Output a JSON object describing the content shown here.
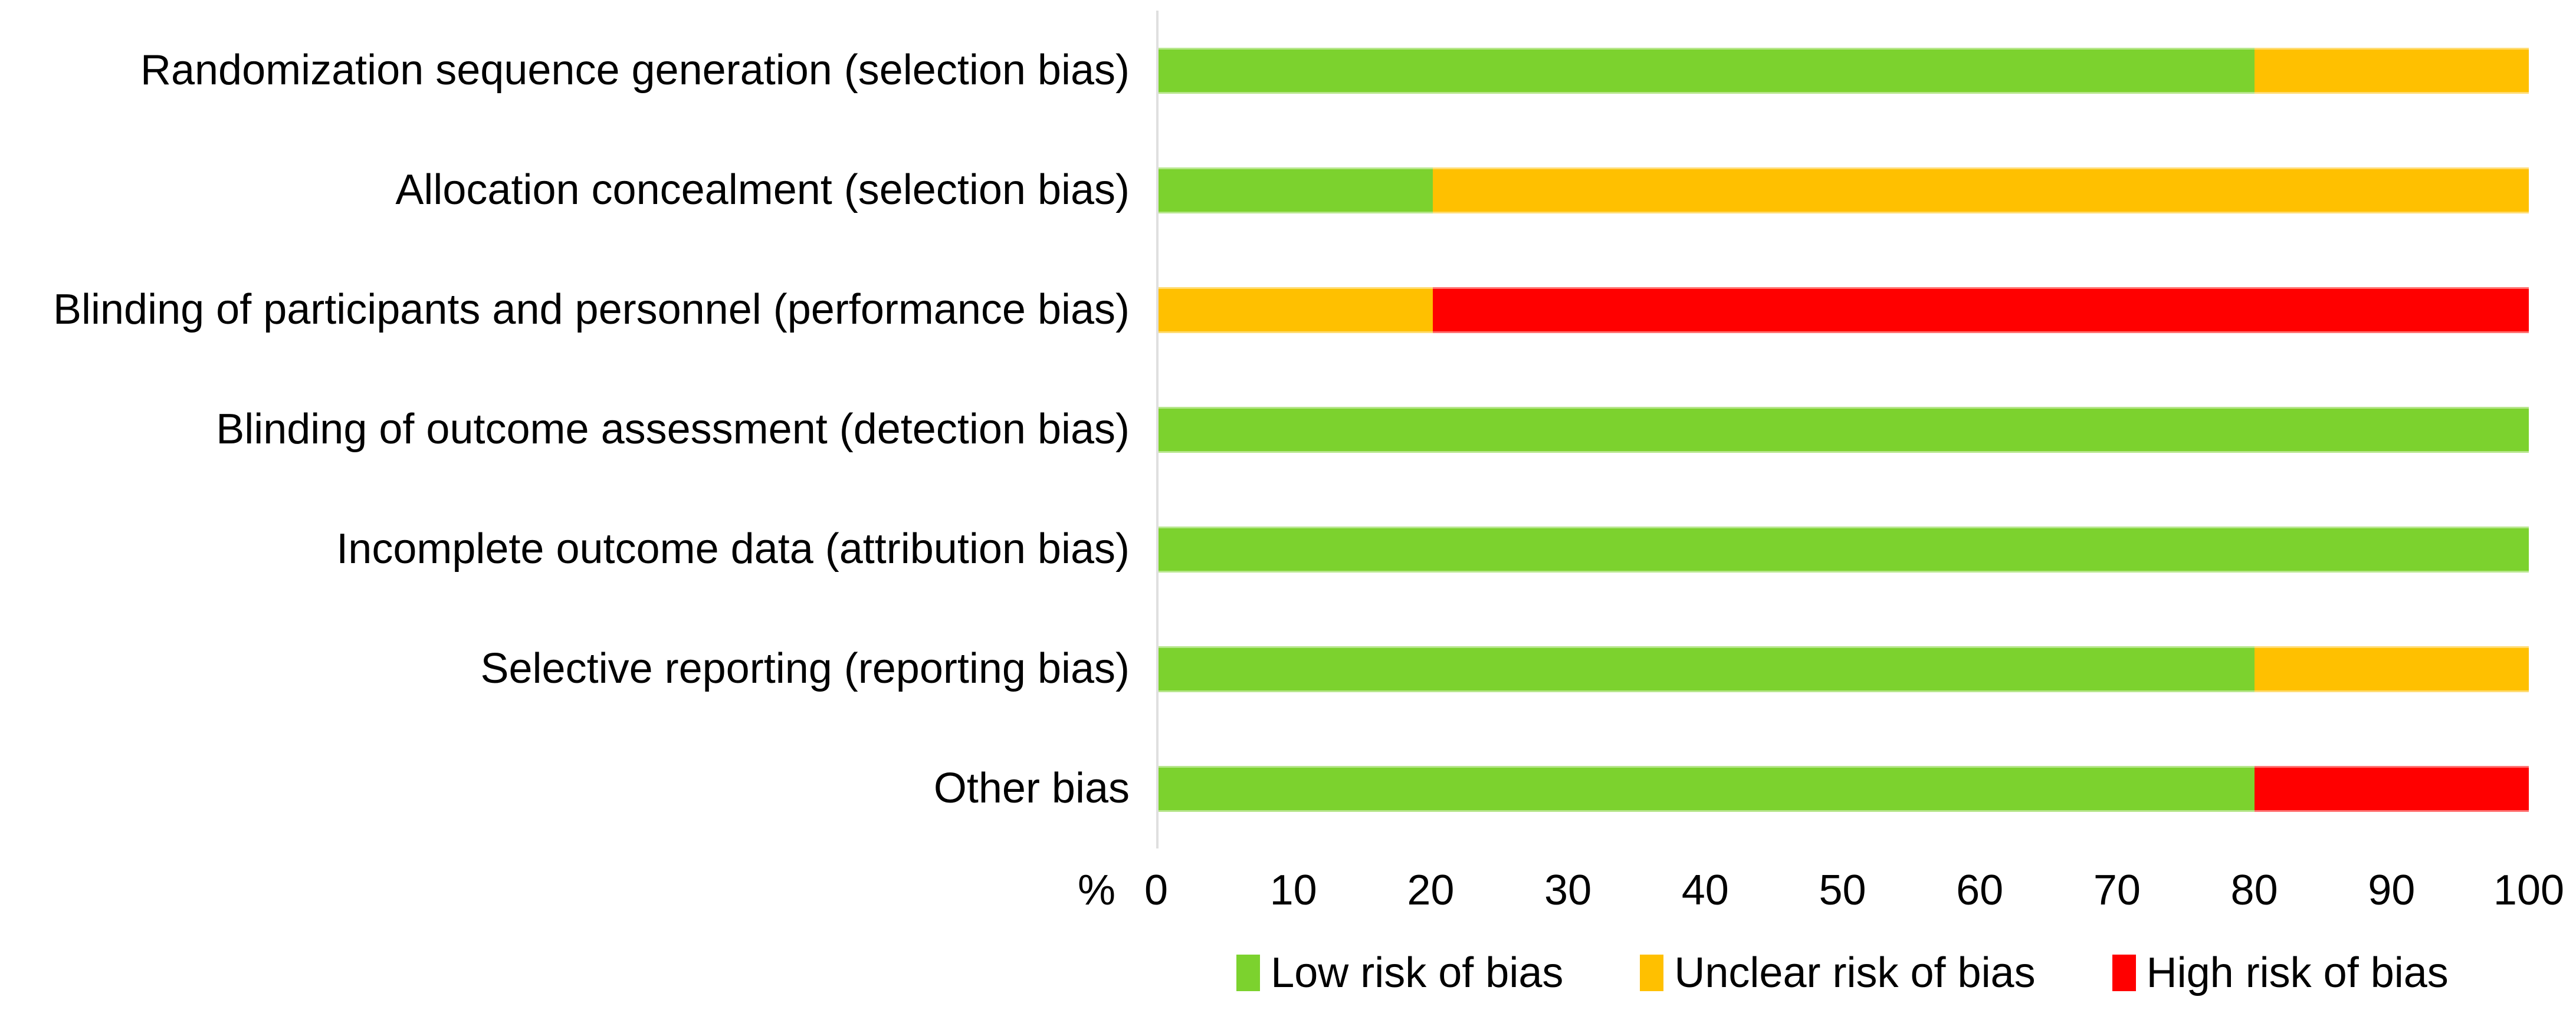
{
  "chart_data": {
    "type": "bar",
    "variant": "horizontal-stacked",
    "title": "",
    "categories": [
      "Randomization sequence generation (selection bias)",
      "Allocation concealment (selection bias)",
      "Blinding of participants and personnel (performance bias)",
      "Blinding of outcome assessment (detection bias)",
      "Incomplete outcome data (attribution bias)",
      "Selective reporting (reporting bias)",
      "Other bias"
    ],
    "series": [
      {
        "name": "Low risk of bias",
        "color": "#7CD22E",
        "values": [
          80,
          20,
          0,
          100,
          100,
          80,
          80
        ]
      },
      {
        "name": "Unclear risk of bias",
        "color": "#FFC000",
        "values": [
          20,
          80,
          20,
          0,
          0,
          20,
          0
        ]
      },
      {
        "name": "High risk of bias",
        "color": "#FF0000",
        "values": [
          0,
          0,
          80,
          0,
          0,
          0,
          20
        ]
      }
    ],
    "xlabel": "%",
    "x_ticks": [
      "0",
      "10",
      "20",
      "30",
      "40",
      "50",
      "60",
      "70",
      "80",
      "90",
      "100"
    ],
    "xlim": [
      0,
      100
    ],
    "grid": false,
    "legend_position": "bottom-center",
    "axis_line_color": "#DFDFDF",
    "text_color": "#000000"
  }
}
